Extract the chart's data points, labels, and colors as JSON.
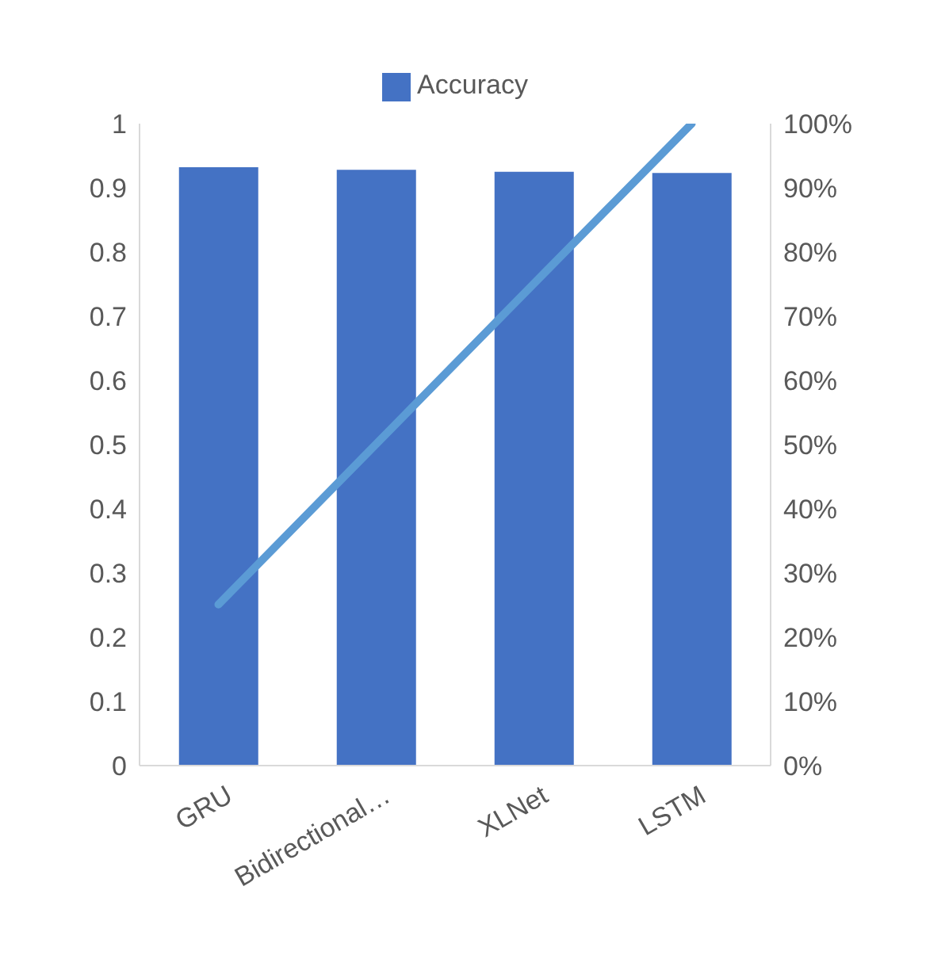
{
  "chart_data": {
    "type": "bar",
    "categories": [
      "GRU",
      "Bidirectional…",
      "XLNet",
      "LSTM"
    ],
    "series": [
      {
        "name": "Accuracy",
        "color": "#4472c4",
        "values": [
          0.932,
          0.928,
          0.925,
          0.923
        ]
      },
      {
        "type": "line",
        "axis": "y2",
        "color": "#5b9bd5",
        "values": [
          25.1,
          50.1,
          75.1,
          100
        ]
      }
    ],
    "ylim": [
      0,
      1
    ],
    "yticks": [
      0,
      0.1,
      0.2,
      0.3,
      0.4,
      0.5,
      0.6,
      0.7,
      0.8,
      0.9,
      1
    ],
    "y2lim": [
      0,
      100
    ],
    "y2ticks": [
      {
        "value": 0,
        "label": "0%"
      },
      {
        "value": 10,
        "label": "10%"
      },
      {
        "value": 20,
        "label": "20%"
      },
      {
        "value": 30,
        "label": "30%"
      },
      {
        "value": 40,
        "label": "40%"
      },
      {
        "value": 50,
        "label": "50%"
      },
      {
        "value": 60,
        "label": "60%"
      },
      {
        "value": 70,
        "label": "70%"
      },
      {
        "value": 80,
        "label": "80%"
      },
      {
        "value": 90,
        "label": "90%"
      },
      {
        "value": 100,
        "label": "100%"
      }
    ],
    "grid": false,
    "legend": "top",
    "marker": "none"
  }
}
